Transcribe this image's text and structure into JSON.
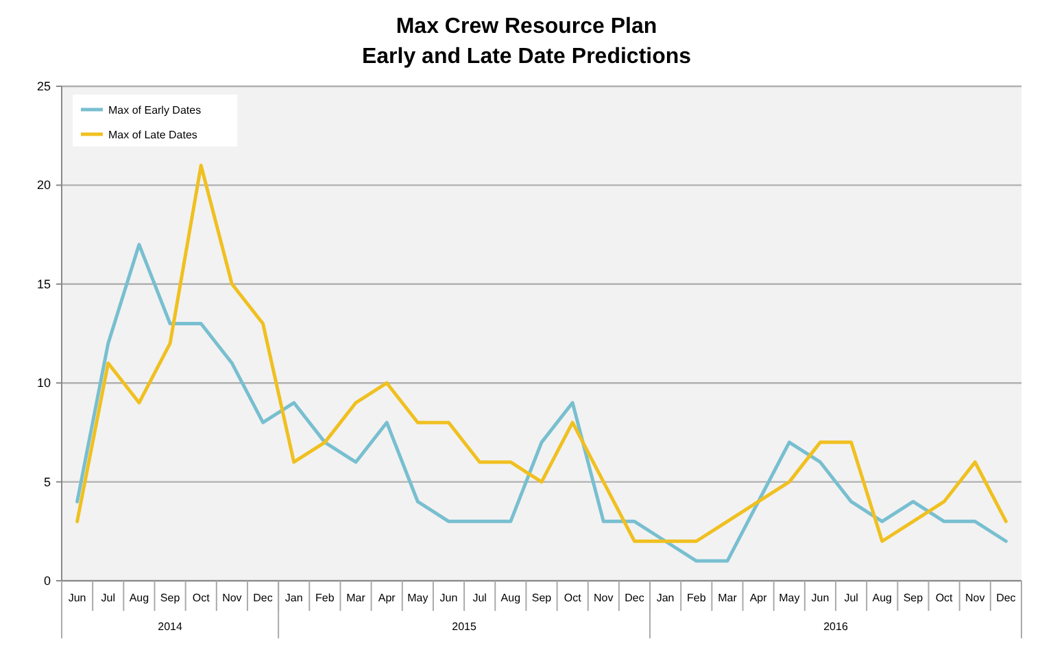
{
  "chart_data": {
    "type": "line",
    "title": "Max Crew Resource Plan",
    "subtitle": "Early and Late Date Predictions",
    "categories": [
      "Jun",
      "Jul",
      "Aug",
      "Sep",
      "Oct",
      "Nov",
      "Dec",
      "Jan",
      "Feb",
      "Mar",
      "Apr",
      "May",
      "Jun",
      "Jul",
      "Aug",
      "Sep",
      "Oct",
      "Nov",
      "Dec",
      "Jan",
      "Feb",
      "Mar",
      "Apr",
      "May",
      "Jun",
      "Jul",
      "Aug",
      "Sep",
      "Oct",
      "Nov",
      "Dec"
    ],
    "annotations": [
      "2014",
      "2015",
      "2016"
    ],
    "ylim": [
      0,
      25
    ],
    "yticks": [
      0,
      5,
      10,
      15,
      20,
      25
    ],
    "grid": "y",
    "legend": "top left",
    "marker": "none",
    "line_style": "solid",
    "series": [
      {
        "name": "Max of Early Dates",
        "color": "#78bfd0",
        "values": [
          4,
          12,
          17,
          13,
          13,
          11,
          8,
          9,
          7,
          6,
          8,
          4,
          3,
          3,
          3,
          7,
          9,
          3,
          3,
          2,
          1,
          1,
          4,
          7,
          6,
          4,
          3,
          4,
          3,
          3,
          2
        ]
      },
      {
        "name": "Max of Late Dates",
        "color": "#f0c020",
        "values": [
          3,
          11,
          9,
          12,
          21,
          15,
          13,
          6,
          7,
          9,
          10,
          8,
          8,
          6,
          6,
          5,
          8,
          5,
          2,
          2,
          2,
          3,
          4,
          5,
          7,
          7,
          2,
          3,
          4,
          6,
          3
        ]
      }
    ]
  }
}
